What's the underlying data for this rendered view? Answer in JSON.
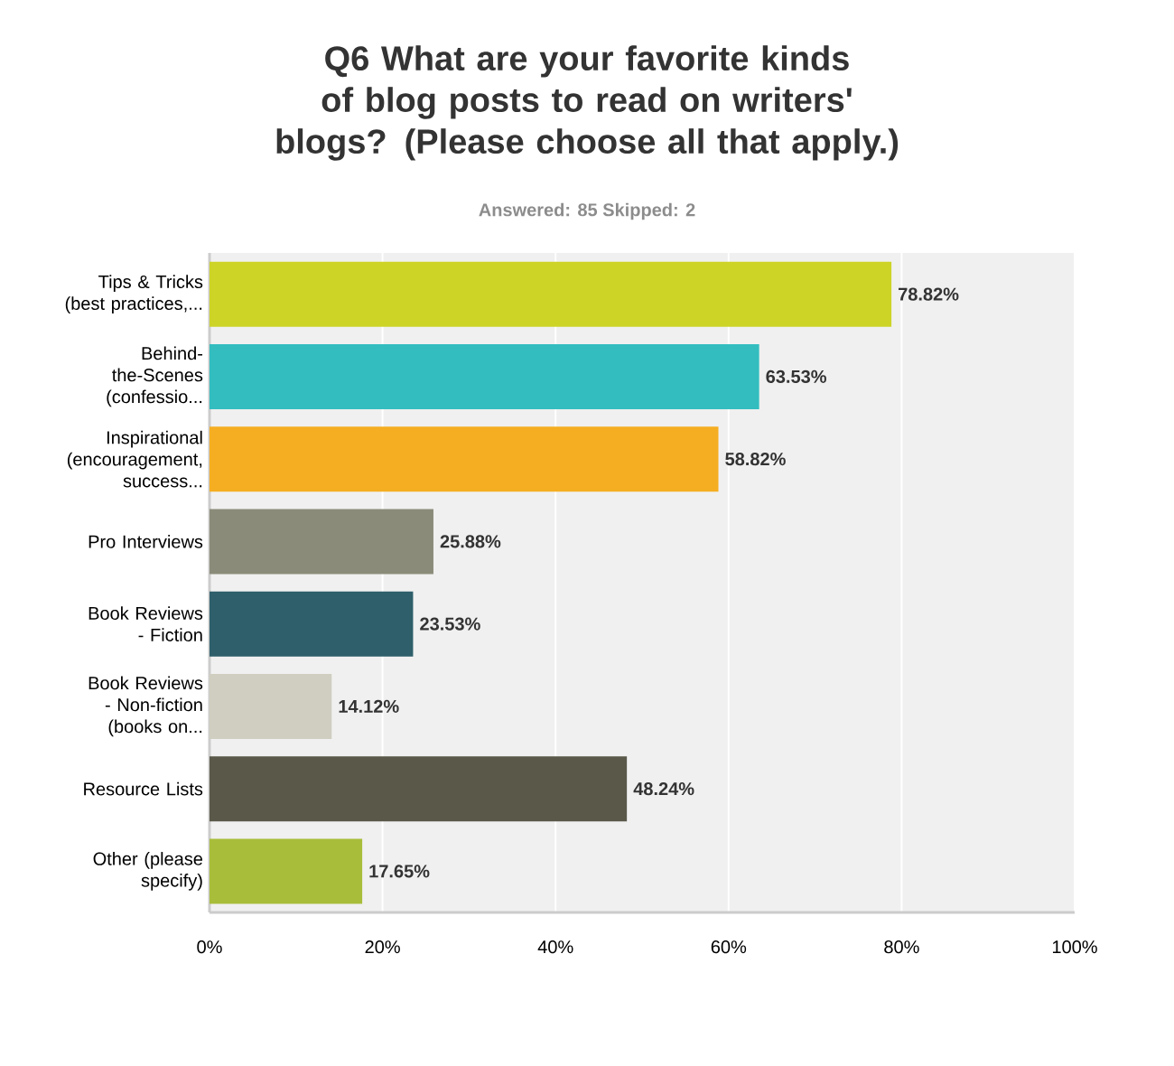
{
  "chart_data": {
    "type": "bar",
    "orientation": "horizontal",
    "title": "Q6 What are your favorite kinds of blog posts to read on writers' blogs? (Please choose all that apply.)",
    "subtitle": "Answered: 85    Skipped: 2",
    "categories": [
      "Tips & Tricks (best practices,...",
      "Behind-the-Scenes (confessio...",
      "Inspirational (encouragement, success...",
      "Pro Interviews",
      "Book Reviews - Fiction",
      "Book Reviews - Non-fiction (books on...",
      "Resource Lists",
      "Other (please specify)"
    ],
    "values": [
      78.82,
      63.53,
      58.82,
      25.88,
      23.53,
      14.12,
      48.24,
      17.65
    ],
    "value_labels": [
      "78.82%",
      "63.53%",
      "58.82%",
      "25.88%",
      "23.53%",
      "14.12%",
      "48.24%",
      "17.65%"
    ],
    "colors": [
      "#cdd426",
      "#33bdbf",
      "#f5ae21",
      "#8b8b7a",
      "#2e5f6b",
      "#cfcec0",
      "#5a5849",
      "#a8bd3a"
    ],
    "xlim": [
      0,
      100
    ],
    "xticks": [
      {
        "value": 0,
        "label": "0%"
      },
      {
        "value": 20,
        "label": "20%"
      },
      {
        "value": 40,
        "label": "40%"
      },
      {
        "value": 60,
        "label": "60%"
      },
      {
        "value": 80,
        "label": "80%"
      },
      {
        "value": 100,
        "label": "100%"
      }
    ],
    "grid": "x"
  }
}
